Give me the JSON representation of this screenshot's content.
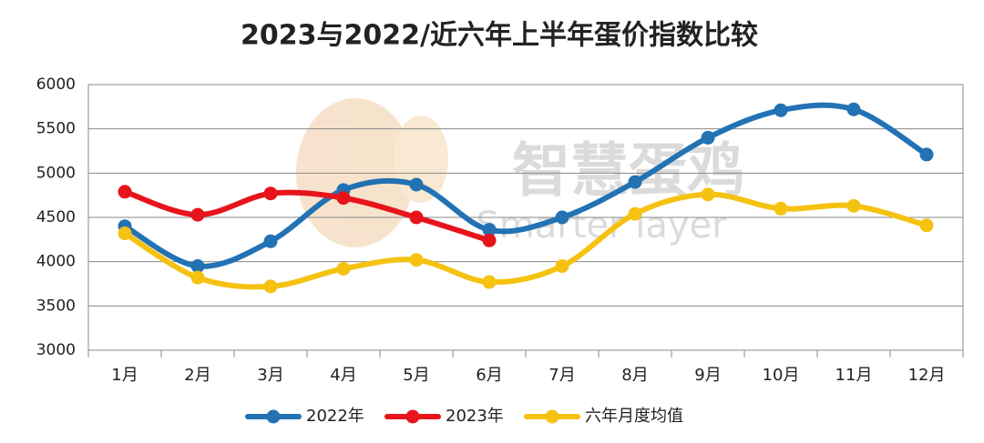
{
  "chart_data": {
    "type": "line",
    "title": "2023与2022/近六年上半年蛋价指数比较",
    "watermark": [
      "智慧蛋鸡",
      "Smarter layer"
    ],
    "categories": [
      "1月",
      "2月",
      "3月",
      "4月",
      "5月",
      "6月",
      "7月",
      "8月",
      "9月",
      "10月",
      "11月",
      "12月"
    ],
    "series": [
      {
        "name": "2022年",
        "color": "#2272b4",
        "values": [
          4400,
          3950,
          4230,
          4810,
          4870,
          4360,
          4500,
          4900,
          5400,
          5710,
          5720,
          5210
        ]
      },
      {
        "name": "2023年",
        "color": "#e8141c",
        "values": [
          4790,
          4530,
          4770,
          4720,
          4500,
          4240,
          null,
          null,
          null,
          null,
          null,
          null
        ]
      },
      {
        "name": "六年月度均值",
        "color": "#f5c211",
        "values": [
          4320,
          3820,
          3720,
          3920,
          4020,
          3770,
          3950,
          4540,
          4760,
          4600,
          4630,
          4410
        ]
      }
    ],
    "ylim": [
      3000,
      6000
    ],
    "yticks": [
      3000,
      3500,
      4000,
      4500,
      5000,
      5500,
      6000
    ],
    "grid": true,
    "legend": "bottom",
    "smooth": true
  }
}
